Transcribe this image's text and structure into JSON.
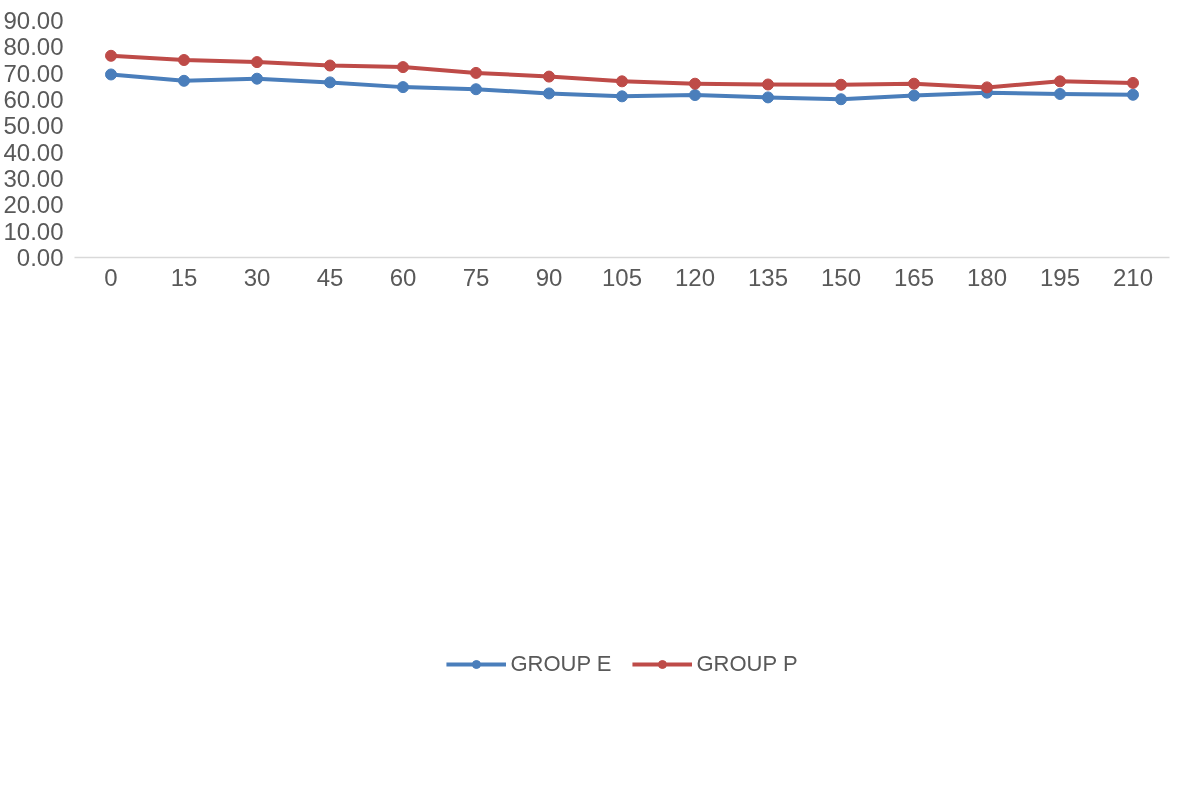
{
  "chart_data": {
    "type": "line",
    "categories": [
      "0",
      "15",
      "30",
      "45",
      "60",
      "75",
      "90",
      "105",
      "120",
      "135",
      "150",
      "165",
      "180",
      "195",
      "210"
    ],
    "series": [
      {
        "name": "GROUP E",
        "color": "#4a7ebb",
        "values": [
          69.5,
          67.1,
          67.9,
          66.5,
          64.7,
          63.9,
          62.3,
          61.2,
          61.7,
          60.8,
          60.1,
          61.5,
          62.6,
          62.1,
          61.8
        ]
      },
      {
        "name": "GROUP P",
        "color": "#be4b48",
        "values": [
          76.6,
          75.0,
          74.2,
          72.9,
          72.3,
          70.1,
          68.7,
          66.9,
          66.0,
          65.7,
          65.6,
          66.0,
          64.6,
          66.9,
          66.3
        ]
      }
    ],
    "ylim": [
      0,
      90
    ],
    "yticks": [
      {
        "value": 0,
        "label": "0.00"
      },
      {
        "value": 10,
        "label": "10.00"
      },
      {
        "value": 20,
        "label": "20.00"
      },
      {
        "value": 30,
        "label": "30.00"
      },
      {
        "value": 40,
        "label": "40.00"
      },
      {
        "value": 50,
        "label": "50.00"
      },
      {
        "value": 60,
        "label": "60.00"
      },
      {
        "value": 70,
        "label": "70.00"
      },
      {
        "value": 80,
        "label": "80.00"
      },
      {
        "value": 90,
        "label": "90.00"
      }
    ],
    "grid": false,
    "legend": "bottom",
    "marker": "circle",
    "line_style": "solid"
  }
}
